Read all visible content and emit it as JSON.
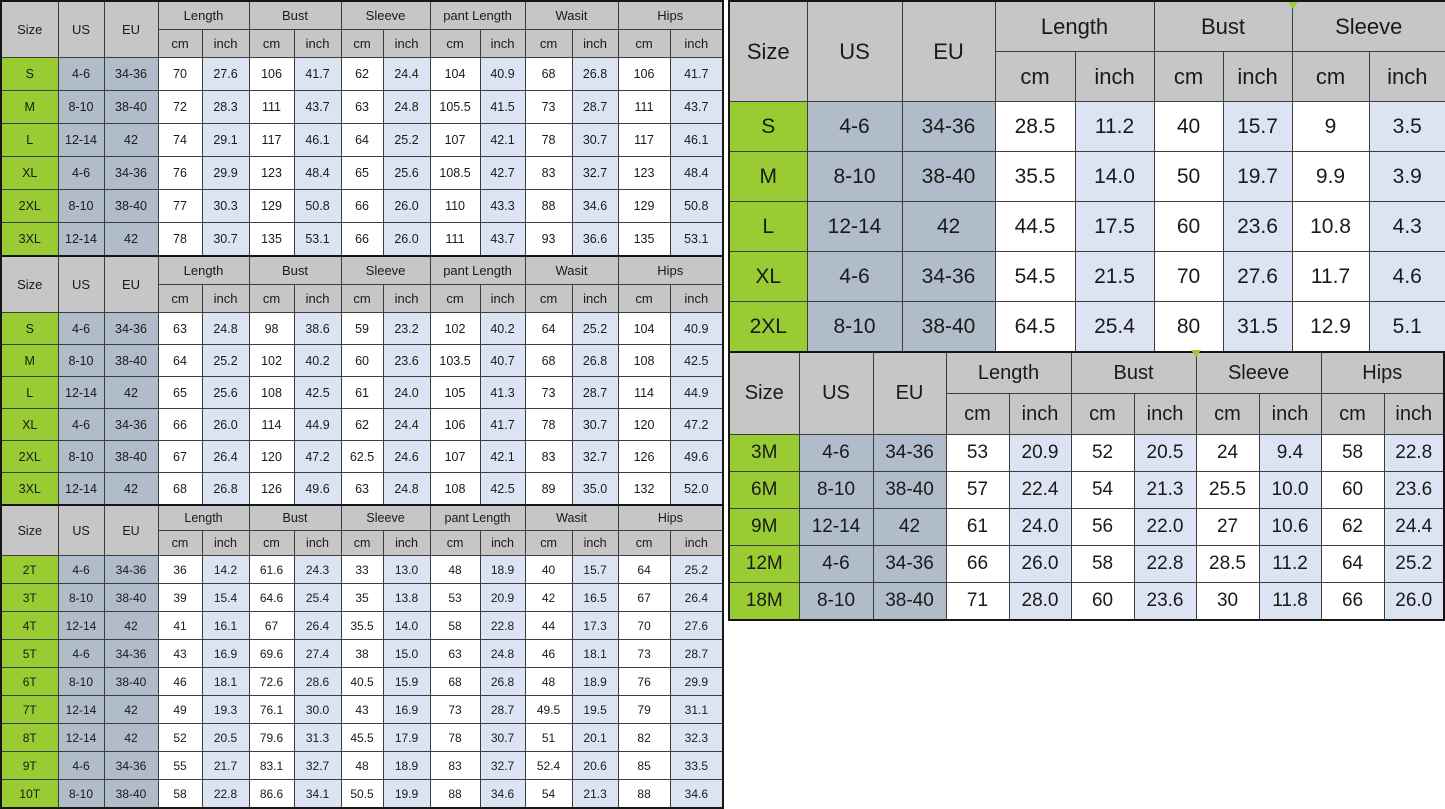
{
  "colors": {
    "accent_green": "#99cc33",
    "slate_blue": "#b0bcc9",
    "header_gray": "#c6c6c6",
    "cell_blue": "#dce3f2",
    "cell_white": "#ffffff",
    "grid_line": "#3d3d3d",
    "outer_line": "#161616",
    "text": "#1a1a1a",
    "page_bg": "#ffffff"
  },
  "left_tables": [
    {
      "name": "adult-size-chart-a",
      "corner_headers": [
        "Size",
        "US",
        "EU"
      ],
      "groups": [
        "Length",
        "Bust",
        "Sleeve",
        "pant Length",
        "Wasit",
        "Hips"
      ],
      "unit_labels": [
        "cm",
        "inch"
      ],
      "rows": [
        [
          "S",
          "4-6",
          "34-36",
          "70",
          "27.6",
          "106",
          "41.7",
          "62",
          "24.4",
          "104",
          "40.9",
          "68",
          "26.8",
          "106",
          "41.7"
        ],
        [
          "M",
          "8-10",
          "38-40",
          "72",
          "28.3",
          "111",
          "43.7",
          "63",
          "24.8",
          "105.5",
          "41.5",
          "73",
          "28.7",
          "111",
          "43.7"
        ],
        [
          "L",
          "12-14",
          "42",
          "74",
          "29.1",
          "117",
          "46.1",
          "64",
          "25.2",
          "107",
          "42.1",
          "78",
          "30.7",
          "117",
          "46.1"
        ],
        [
          "XL",
          "4-6",
          "34-36",
          "76",
          "29.9",
          "123",
          "48.4",
          "65",
          "25.6",
          "108.5",
          "42.7",
          "83",
          "32.7",
          "123",
          "48.4"
        ],
        [
          "2XL",
          "8-10",
          "38-40",
          "77",
          "30.3",
          "129",
          "50.8",
          "66",
          "26.0",
          "110",
          "43.3",
          "88",
          "34.6",
          "129",
          "50.8"
        ],
        [
          "3XL",
          "12-14",
          "42",
          "78",
          "30.7",
          "135",
          "53.1",
          "66",
          "26.0",
          "111",
          "43.7",
          "93",
          "36.6",
          "135",
          "53.1"
        ]
      ]
    },
    {
      "name": "adult-size-chart-b",
      "corner_headers": [
        "Size",
        "US",
        "EU"
      ],
      "groups": [
        "Length",
        "Bust",
        "Sleeve",
        "pant Length",
        "Wasit",
        "Hips"
      ],
      "unit_labels": [
        "cm",
        "inch"
      ],
      "rows": [
        [
          "S",
          "4-6",
          "34-36",
          "63",
          "24.8",
          "98",
          "38.6",
          "59",
          "23.2",
          "102",
          "40.2",
          "64",
          "25.2",
          "104",
          "40.9"
        ],
        [
          "M",
          "8-10",
          "38-40",
          "64",
          "25.2",
          "102",
          "40.2",
          "60",
          "23.6",
          "103.5",
          "40.7",
          "68",
          "26.8",
          "108",
          "42.5"
        ],
        [
          "L",
          "12-14",
          "42",
          "65",
          "25.6",
          "108",
          "42.5",
          "61",
          "24.0",
          "105",
          "41.3",
          "73",
          "28.7",
          "114",
          "44.9"
        ],
        [
          "XL",
          "4-6",
          "34-36",
          "66",
          "26.0",
          "114",
          "44.9",
          "62",
          "24.4",
          "106",
          "41.7",
          "78",
          "30.7",
          "120",
          "47.2"
        ],
        [
          "2XL",
          "8-10",
          "38-40",
          "67",
          "26.4",
          "120",
          "47.2",
          "62.5",
          "24.6",
          "107",
          "42.1",
          "83",
          "32.7",
          "126",
          "49.6"
        ],
        [
          "3XL",
          "12-14",
          "42",
          "68",
          "26.8",
          "126",
          "49.6",
          "63",
          "24.8",
          "108",
          "42.5",
          "89",
          "35.0",
          "132",
          "52.0"
        ]
      ]
    },
    {
      "name": "toddler-size-chart",
      "corner_headers": [
        "Size",
        "US",
        "EU"
      ],
      "groups": [
        "Length",
        "Bust",
        "Sleeve",
        "pant Length",
        "Wasit",
        "Hips"
      ],
      "unit_labels": [
        "cm",
        "inch"
      ],
      "rows": [
        [
          "2T",
          "4-6",
          "34-36",
          "36",
          "14.2",
          "61.6",
          "24.3",
          "33",
          "13.0",
          "48",
          "18.9",
          "40",
          "15.7",
          "64",
          "25.2"
        ],
        [
          "3T",
          "8-10",
          "38-40",
          "39",
          "15.4",
          "64.6",
          "25.4",
          "35",
          "13.8",
          "53",
          "20.9",
          "42",
          "16.5",
          "67",
          "26.4"
        ],
        [
          "4T",
          "12-14",
          "42",
          "41",
          "16.1",
          "67",
          "26.4",
          "35.5",
          "14.0",
          "58",
          "22.8",
          "44",
          "17.3",
          "70",
          "27.6"
        ],
        [
          "5T",
          "4-6",
          "34-36",
          "43",
          "16.9",
          "69.6",
          "27.4",
          "38",
          "15.0",
          "63",
          "24.8",
          "46",
          "18.1",
          "73",
          "28.7"
        ],
        [
          "6T",
          "8-10",
          "38-40",
          "46",
          "18.1",
          "72.6",
          "28.6",
          "40.5",
          "15.9",
          "68",
          "26.8",
          "48",
          "18.9",
          "76",
          "29.9"
        ],
        [
          "7T",
          "12-14",
          "42",
          "49",
          "19.3",
          "76.1",
          "30.0",
          "43",
          "16.9",
          "73",
          "28.7",
          "49.5",
          "19.5",
          "79",
          "31.1"
        ],
        [
          "8T",
          "12-14",
          "42",
          "52",
          "20.5",
          "79.6",
          "31.3",
          "45.5",
          "17.9",
          "78",
          "30.7",
          "51",
          "20.1",
          "82",
          "32.3"
        ],
        [
          "9T",
          "4-6",
          "34-36",
          "55",
          "21.7",
          "83.1",
          "32.7",
          "48",
          "18.9",
          "83",
          "32.7",
          "52.4",
          "20.6",
          "85",
          "33.5"
        ],
        [
          "10T",
          "8-10",
          "38-40",
          "58",
          "22.8",
          "86.6",
          "34.1",
          "50.5",
          "19.9",
          "88",
          "34.6",
          "54",
          "21.3",
          "88",
          "34.6"
        ]
      ]
    }
  ],
  "right_tables": [
    {
      "name": "adult-top-size-chart",
      "corner_headers": [
        "Size",
        "US",
        "EU"
      ],
      "groups": [
        "Length",
        "Bust",
        "Sleeve"
      ],
      "unit_labels": [
        "cm",
        "inch"
      ],
      "rows": [
        [
          "S",
          "4-6",
          "34-36",
          "28.5",
          "11.2",
          "40",
          "15.7",
          "9",
          "3.5"
        ],
        [
          "M",
          "8-10",
          "38-40",
          "35.5",
          "14.0",
          "50",
          "19.7",
          "9.9",
          "3.9"
        ],
        [
          "L",
          "12-14",
          "42",
          "44.5",
          "17.5",
          "60",
          "23.6",
          "10.8",
          "4.3"
        ],
        [
          "XL",
          "4-6",
          "34-36",
          "54.5",
          "21.5",
          "70",
          "27.6",
          "11.7",
          "4.6"
        ],
        [
          "2XL",
          "8-10",
          "38-40",
          "64.5",
          "25.4",
          "80",
          "31.5",
          "12.9",
          "5.1"
        ]
      ]
    },
    {
      "name": "baby-size-chart",
      "corner_headers": [
        "Size",
        "US",
        "EU"
      ],
      "groups": [
        "Length",
        "Bust",
        "Sleeve",
        "Hips"
      ],
      "unit_labels": [
        "cm",
        "inch"
      ],
      "rows": [
        [
          "3M",
          "4-6",
          "34-36",
          "53",
          "20.9",
          "52",
          "20.5",
          "24",
          "9.4",
          "58",
          "22.8"
        ],
        [
          "6M",
          "8-10",
          "38-40",
          "57",
          "22.4",
          "54",
          "21.3",
          "25.5",
          "10.0",
          "60",
          "23.6"
        ],
        [
          "9M",
          "12-14",
          "42",
          "61",
          "24.0",
          "56",
          "22.0",
          "27",
          "10.6",
          "62",
          "24.4"
        ],
        [
          "12M",
          "4-6",
          "34-36",
          "66",
          "26.0",
          "58",
          "22.8",
          "28.5",
          "11.2",
          "64",
          "25.2"
        ],
        [
          "18M",
          "8-10",
          "38-40",
          "71",
          "28.0",
          "60",
          "23.6",
          "30",
          "11.8",
          "66",
          "26.0"
        ]
      ]
    }
  ]
}
